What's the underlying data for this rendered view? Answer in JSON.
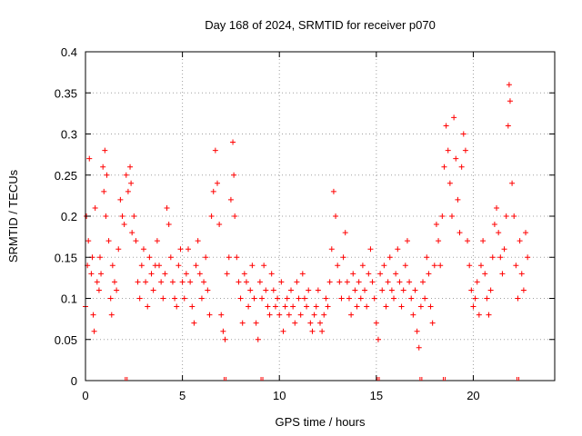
{
  "chart_data": {
    "type": "scatter",
    "title": "Day 168 of 2024, SRMTID for receiver p070",
    "xlabel": "GPS time / hours",
    "ylabel": "SRMTID / TECUs",
    "xlim": [
      0,
      24.2
    ],
    "ylim": [
      0,
      0.4
    ],
    "x_ticks": [
      0,
      5,
      10,
      15,
      20
    ],
    "y_ticks": [
      0,
      0.05,
      0.1,
      0.15,
      0.2,
      0.25,
      0.3,
      0.35,
      0.4
    ],
    "x_tick_labels": [
      "0",
      "5",
      "10",
      "15",
      "20"
    ],
    "y_tick_labels": [
      "0",
      "0.05",
      "0.1",
      "0.15",
      "0.2",
      "0.25",
      "0.3",
      "0.35",
      "0.4"
    ],
    "grid": true,
    "marker": "+",
    "color": "#ff0000",
    "gap_markers_x": [
      2.1,
      7.2,
      9.1,
      15.1,
      17.3,
      18.5,
      22.3
    ],
    "series": [
      {
        "name": "SRMTID",
        "points": [
          [
            0.0,
            0.09
          ],
          [
            0.05,
            0.2
          ],
          [
            0.1,
            0.14
          ],
          [
            0.15,
            0.17
          ],
          [
            0.2,
            0.27
          ],
          [
            0.3,
            0.13
          ],
          [
            0.35,
            0.15
          ],
          [
            0.4,
            0.08
          ],
          [
            0.45,
            0.06
          ],
          [
            0.5,
            0.21
          ],
          [
            0.6,
            0.12
          ],
          [
            0.7,
            0.11
          ],
          [
            0.75,
            0.15
          ],
          [
            0.8,
            0.13
          ],
          [
            0.9,
            0.26
          ],
          [
            0.95,
            0.23
          ],
          [
            1.0,
            0.28
          ],
          [
            1.05,
            0.2
          ],
          [
            1.1,
            0.25
          ],
          [
            1.2,
            0.17
          ],
          [
            1.3,
            0.1
          ],
          [
            1.35,
            0.08
          ],
          [
            1.4,
            0.14
          ],
          [
            1.5,
            0.12
          ],
          [
            1.6,
            0.11
          ],
          [
            1.7,
            0.16
          ],
          [
            1.8,
            0.22
          ],
          [
            1.9,
            0.2
          ],
          [
            2.0,
            0.19
          ],
          [
            2.1,
            0.25
          ],
          [
            2.2,
            0.23
          ],
          [
            2.3,
            0.26
          ],
          [
            2.35,
            0.24
          ],
          [
            2.4,
            0.18
          ],
          [
            2.5,
            0.2
          ],
          [
            2.6,
            0.17
          ],
          [
            2.7,
            0.12
          ],
          [
            2.8,
            0.1
          ],
          [
            2.9,
            0.14
          ],
          [
            3.0,
            0.16
          ],
          [
            3.1,
            0.12
          ],
          [
            3.2,
            0.09
          ],
          [
            3.3,
            0.15
          ],
          [
            3.4,
            0.13
          ],
          [
            3.5,
            0.11
          ],
          [
            3.6,
            0.14
          ],
          [
            3.7,
            0.17
          ],
          [
            3.8,
            0.14
          ],
          [
            3.9,
            0.12
          ],
          [
            4.0,
            0.1
          ],
          [
            4.1,
            0.13
          ],
          [
            4.2,
            0.21
          ],
          [
            4.3,
            0.19
          ],
          [
            4.4,
            0.15
          ],
          [
            4.5,
            0.12
          ],
          [
            4.6,
            0.1
          ],
          [
            4.7,
            0.09
          ],
          [
            4.8,
            0.14
          ],
          [
            4.9,
            0.16
          ],
          [
            5.0,
            0.12
          ],
          [
            5.1,
            0.1
          ],
          [
            5.2,
            0.13
          ],
          [
            5.3,
            0.16
          ],
          [
            5.4,
            0.12
          ],
          [
            5.5,
            0.09
          ],
          [
            5.6,
            0.07
          ],
          [
            5.7,
            0.14
          ],
          [
            5.8,
            0.17
          ],
          [
            5.9,
            0.13
          ],
          [
            6.0,
            0.1
          ],
          [
            6.1,
            0.12
          ],
          [
            6.2,
            0.15
          ],
          [
            6.3,
            0.11
          ],
          [
            6.4,
            0.08
          ],
          [
            6.5,
            0.2
          ],
          [
            6.6,
            0.23
          ],
          [
            6.7,
            0.28
          ],
          [
            6.8,
            0.24
          ],
          [
            6.9,
            0.19
          ],
          [
            7.0,
            0.08
          ],
          [
            7.1,
            0.06
          ],
          [
            7.2,
            0.05
          ],
          [
            7.3,
            0.13
          ],
          [
            7.4,
            0.15
          ],
          [
            7.5,
            0.22
          ],
          [
            7.6,
            0.29
          ],
          [
            7.65,
            0.25
          ],
          [
            7.7,
            0.2
          ],
          [
            7.8,
            0.15
          ],
          [
            7.9,
            0.12
          ],
          [
            8.0,
            0.1
          ],
          [
            8.1,
            0.07
          ],
          [
            8.2,
            0.13
          ],
          [
            8.3,
            0.12
          ],
          [
            8.4,
            0.09
          ],
          [
            8.5,
            0.11
          ],
          [
            8.6,
            0.14
          ],
          [
            8.7,
            0.1
          ],
          [
            8.8,
            0.07
          ],
          [
            8.9,
            0.05
          ],
          [
            9.0,
            0.12
          ],
          [
            9.1,
            0.1
          ],
          [
            9.2,
            0.14
          ],
          [
            9.3,
            0.11
          ],
          [
            9.4,
            0.09
          ],
          [
            9.5,
            0.08
          ],
          [
            9.6,
            0.13
          ],
          [
            9.7,
            0.11
          ],
          [
            9.8,
            0.09
          ],
          [
            9.9,
            0.1
          ],
          [
            10.0,
            0.08
          ],
          [
            10.1,
            0.12
          ],
          [
            10.2,
            0.06
          ],
          [
            10.3,
            0.09
          ],
          [
            10.4,
            0.1
          ],
          [
            10.5,
            0.08
          ],
          [
            10.6,
            0.11
          ],
          [
            10.7,
            0.09
          ],
          [
            10.8,
            0.07
          ],
          [
            10.9,
            0.12
          ],
          [
            11.0,
            0.1
          ],
          [
            11.1,
            0.08
          ],
          [
            11.2,
            0.13
          ],
          [
            11.3,
            0.1
          ],
          [
            11.4,
            0.09
          ],
          [
            11.5,
            0.11
          ],
          [
            11.6,
            0.07
          ],
          [
            11.7,
            0.06
          ],
          [
            11.8,
            0.08
          ],
          [
            11.9,
            0.09
          ],
          [
            12.0,
            0.11
          ],
          [
            12.1,
            0.07
          ],
          [
            12.2,
            0.06
          ],
          [
            12.3,
            0.08
          ],
          [
            12.4,
            0.1
          ],
          [
            12.5,
            0.09
          ],
          [
            12.6,
            0.12
          ],
          [
            12.7,
            0.16
          ],
          [
            12.8,
            0.23
          ],
          [
            12.9,
            0.2
          ],
          [
            13.0,
            0.14
          ],
          [
            13.1,
            0.12
          ],
          [
            13.2,
            0.1
          ],
          [
            13.3,
            0.15
          ],
          [
            13.4,
            0.18
          ],
          [
            13.5,
            0.12
          ],
          [
            13.6,
            0.1
          ],
          [
            13.7,
            0.08
          ],
          [
            13.8,
            0.13
          ],
          [
            13.9,
            0.11
          ],
          [
            14.0,
            0.09
          ],
          [
            14.1,
            0.12
          ],
          [
            14.2,
            0.1
          ],
          [
            14.3,
            0.14
          ],
          [
            14.4,
            0.11
          ],
          [
            14.5,
            0.09
          ],
          [
            14.6,
            0.13
          ],
          [
            14.7,
            0.16
          ],
          [
            14.8,
            0.12
          ],
          [
            14.9,
            0.1
          ],
          [
            15.0,
            0.07
          ],
          [
            15.1,
            0.05
          ],
          [
            15.2,
            0.13
          ],
          [
            15.3,
            0.11
          ],
          [
            15.4,
            0.14
          ],
          [
            15.5,
            0.09
          ],
          [
            15.6,
            0.12
          ],
          [
            15.7,
            0.15
          ],
          [
            15.8,
            0.11
          ],
          [
            15.9,
            0.1
          ],
          [
            16.0,
            0.13
          ],
          [
            16.1,
            0.16
          ],
          [
            16.2,
            0.12
          ],
          [
            16.3,
            0.09
          ],
          [
            16.4,
            0.11
          ],
          [
            16.5,
            0.14
          ],
          [
            16.6,
            0.17
          ],
          [
            16.7,
            0.12
          ],
          [
            16.8,
            0.1
          ],
          [
            16.9,
            0.08
          ],
          [
            17.0,
            0.11
          ],
          [
            17.1,
            0.06
          ],
          [
            17.2,
            0.04
          ],
          [
            17.3,
            0.09
          ],
          [
            17.4,
            0.12
          ],
          [
            17.5,
            0.1
          ],
          [
            17.6,
            0.15
          ],
          [
            17.7,
            0.13
          ],
          [
            17.8,
            0.09
          ],
          [
            17.9,
            0.07
          ],
          [
            18.0,
            0.14
          ],
          [
            18.1,
            0.19
          ],
          [
            18.2,
            0.17
          ],
          [
            18.3,
            0.14
          ],
          [
            18.4,
            0.2
          ],
          [
            18.5,
            0.26
          ],
          [
            18.6,
            0.31
          ],
          [
            18.7,
            0.28
          ],
          [
            18.8,
            0.24
          ],
          [
            18.9,
            0.2
          ],
          [
            19.0,
            0.32
          ],
          [
            19.1,
            0.27
          ],
          [
            19.2,
            0.22
          ],
          [
            19.3,
            0.18
          ],
          [
            19.4,
            0.26
          ],
          [
            19.5,
            0.3
          ],
          [
            19.6,
            0.28
          ],
          [
            19.7,
            0.17
          ],
          [
            19.8,
            0.14
          ],
          [
            19.9,
            0.11
          ],
          [
            20.0,
            0.09
          ],
          [
            20.1,
            0.1
          ],
          [
            20.2,
            0.12
          ],
          [
            20.3,
            0.08
          ],
          [
            20.4,
            0.14
          ],
          [
            20.5,
            0.17
          ],
          [
            20.6,
            0.13
          ],
          [
            20.7,
            0.1
          ],
          [
            20.8,
            0.08
          ],
          [
            20.9,
            0.11
          ],
          [
            21.0,
            0.15
          ],
          [
            21.1,
            0.19
          ],
          [
            21.2,
            0.21
          ],
          [
            21.3,
            0.18
          ],
          [
            21.4,
            0.15
          ],
          [
            21.5,
            0.13
          ],
          [
            21.6,
            0.16
          ],
          [
            21.7,
            0.2
          ],
          [
            21.8,
            0.31
          ],
          [
            21.85,
            0.36
          ],
          [
            21.9,
            0.34
          ],
          [
            22.0,
            0.24
          ],
          [
            22.1,
            0.2
          ],
          [
            22.2,
            0.14
          ],
          [
            22.3,
            0.1
          ],
          [
            22.4,
            0.17
          ],
          [
            22.5,
            0.13
          ],
          [
            22.6,
            0.11
          ],
          [
            22.7,
            0.18
          ],
          [
            22.8,
            0.15
          ]
        ]
      }
    ]
  }
}
